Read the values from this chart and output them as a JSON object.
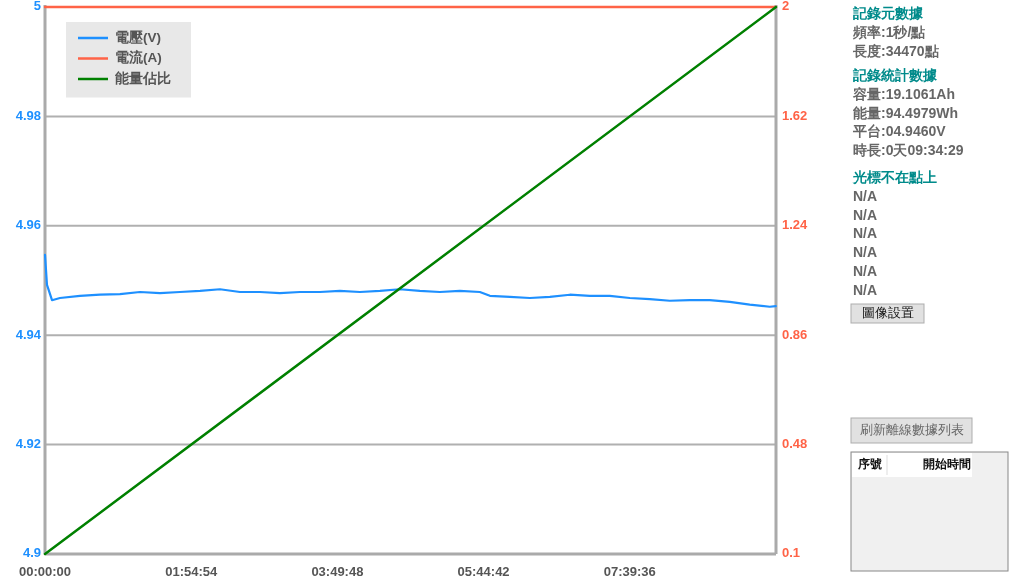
{
  "chart_data": [
    {
      "type": "line",
      "x": [
        0,
        9.575
      ],
      "xlim": [
        0,
        9.575
      ],
      "ylim": [
        4.9,
        5
      ],
      "y2lim": [
        0.1,
        2
      ],
      "xticks": [
        {
          "value": 0,
          "label": "00:00:00"
        },
        {
          "value": 1.915,
          "label": "01:54:54"
        },
        {
          "value": 3.83,
          "label": "03:49:48"
        },
        {
          "value": 5.745,
          "label": "05:44:42"
        },
        {
          "value": 7.66,
          "label": "07:39:36"
        }
      ],
      "yticks": [
        4.9,
        4.92,
        4.94,
        4.96,
        4.98,
        5
      ],
      "y2ticks": [
        0.1,
        0.48,
        0.86,
        1.24,
        1.62,
        2
      ],
      "grid": "y",
      "legend": "top left",
      "series": [
        {
          "name": "電壓(V)",
          "color": "#1e90ff",
          "x": [
            0,
            0.026,
            0.092,
            0.196,
            0.458,
            0.72,
            0.982,
            1.244,
            1.506,
            1.768,
            2.03,
            2.292,
            2.553,
            2.815,
            3.077,
            3.339,
            3.601,
            3.863,
            4.125,
            4.387,
            4.648,
            4.91,
            5.172,
            5.434,
            5.696,
            5.827,
            6.089,
            6.351,
            6.613,
            6.875,
            7.136,
            7.398,
            7.66,
            7.922,
            8.184,
            8.446,
            8.708,
            8.97,
            9.231,
            9.493,
            9.572
          ],
          "values": [
            4.9547,
            4.9492,
            4.9464,
            4.9468,
            4.9472,
            4.9474,
            4.9475,
            4.9479,
            4.9477,
            4.9479,
            4.9481,
            4.9484,
            4.9479,
            4.9479,
            4.9477,
            4.9479,
            4.9479,
            4.9481,
            4.9479,
            4.9481,
            4.9484,
            4.9481,
            4.9479,
            4.9481,
            4.9479,
            4.9472,
            4.947,
            4.9468,
            4.947,
            4.9474,
            4.9472,
            4.9472,
            4.9468,
            4.9466,
            4.9463,
            4.9464,
            4.9464,
            4.9461,
            4.9456,
            4.9452,
            4.9453
          ]
        },
        {
          "name": "電流(A)",
          "color": "#ff6347",
          "axis": "y2",
          "values": [
            2,
            2
          ]
        },
        {
          "name": "能量佔比",
          "color": "#008000",
          "axis": "y2",
          "values": [
            0.1,
            2
          ]
        }
      ]
    },
    {
      "type": "other",
      "title": "記錄元數據",
      "annotations": [
        "頻率:1秒/點",
        "長度:34470點"
      ]
    },
    {
      "type": "other",
      "title": "記錄統計數據",
      "annotations": [
        "容量:19.1061Ah",
        "能量:94.4979Wh",
        "平台:04.9460V",
        "時長:0天09:34:29"
      ]
    },
    {
      "type": "other",
      "title": "光標不在點上",
      "annotations": [
        "N/A",
        "N/A",
        "N/A",
        "N/A",
        "N/A",
        "N/A"
      ]
    },
    {
      "type": "other",
      "annotations": [
        "圖像設置"
      ]
    },
    {
      "type": "other",
      "annotations": [
        "刷新離線數據列表"
      ]
    },
    {
      "type": "other",
      "annotations": [
        "序號",
        "開始時間"
      ]
    }
  ]
}
